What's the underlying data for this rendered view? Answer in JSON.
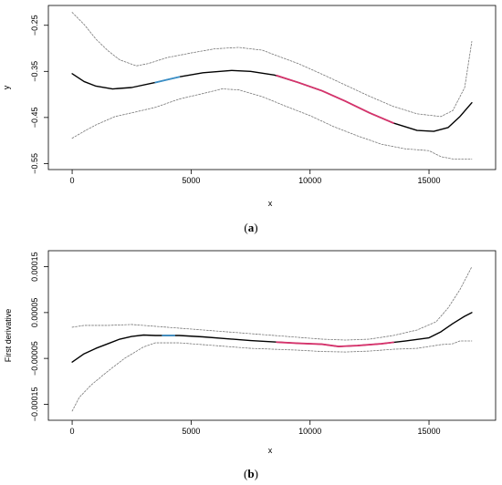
{
  "chart_data": [
    {
      "type": "line",
      "caption_letter": "a",
      "xlabel": "x",
      "ylabel": "y",
      "xlim": [
        -1000,
        17800
      ],
      "ylim": [
        -0.563,
        -0.207
      ],
      "x_ticks": [
        0,
        5000,
        10000,
        15000
      ],
      "x_tick_labels": [
        "0",
        "5000",
        "10000",
        "15000"
      ],
      "y_ticks": [
        -0.25,
        -0.35,
        -0.45,
        -0.55
      ],
      "y_tick_labels": [
        "−0.25",
        "−0.35",
        "−0.45",
        "−0.55"
      ],
      "grid": false,
      "colors": {
        "fit": "#000000",
        "bands": "#777777",
        "increasing": "#3a8fc7",
        "decreasing": "#d6336c"
      },
      "series": [
        {
          "role": "fit",
          "points": [
            [
              0,
              -0.355
            ],
            [
              500,
              -0.372
            ],
            [
              1000,
              -0.382
            ],
            [
              1700,
              -0.388
            ],
            [
              2500,
              -0.385
            ],
            [
              3500,
              -0.374
            ],
            [
              4500,
              -0.362
            ],
            [
              5500,
              -0.353
            ],
            [
              6700,
              -0.348
            ],
            [
              7500,
              -0.35
            ],
            [
              8500,
              -0.358
            ],
            [
              9500,
              -0.374
            ],
            [
              10500,
              -0.392
            ],
            [
              11500,
              -0.415
            ],
            [
              12500,
              -0.44
            ],
            [
              13500,
              -0.462
            ],
            [
              14500,
              -0.478
            ],
            [
              15200,
              -0.48
            ],
            [
              15800,
              -0.472
            ],
            [
              16300,
              -0.448
            ],
            [
              16800,
              -0.418
            ]
          ]
        },
        {
          "role": "upper-band",
          "points": [
            [
              0,
              -0.222
            ],
            [
              500,
              -0.248
            ],
            [
              1000,
              -0.28
            ],
            [
              1500,
              -0.305
            ],
            [
              2000,
              -0.325
            ],
            [
              2700,
              -0.338
            ],
            [
              3200,
              -0.333
            ],
            [
              4000,
              -0.32
            ],
            [
              5000,
              -0.31
            ],
            [
              6000,
              -0.301
            ],
            [
              7000,
              -0.298
            ],
            [
              8000,
              -0.304
            ],
            [
              8500,
              -0.314
            ],
            [
              9500,
              -0.333
            ],
            [
              10500,
              -0.356
            ],
            [
              11500,
              -0.38
            ],
            [
              12500,
              -0.404
            ],
            [
              13500,
              -0.426
            ],
            [
              14500,
              -0.442
            ],
            [
              15500,
              -0.448
            ],
            [
              16000,
              -0.435
            ],
            [
              16500,
              -0.385
            ],
            [
              16800,
              -0.285
            ]
          ]
        },
        {
          "role": "lower-band",
          "points": [
            [
              0,
              -0.495
            ],
            [
              500,
              -0.48
            ],
            [
              1000,
              -0.466
            ],
            [
              1800,
              -0.448
            ],
            [
              2500,
              -0.44
            ],
            [
              3500,
              -0.428
            ],
            [
              4500,
              -0.41
            ],
            [
              5500,
              -0.398
            ],
            [
              6300,
              -0.388
            ],
            [
              7000,
              -0.39
            ],
            [
              8000,
              -0.405
            ],
            [
              9000,
              -0.426
            ],
            [
              10000,
              -0.446
            ],
            [
              11000,
              -0.47
            ],
            [
              12000,
              -0.49
            ],
            [
              13000,
              -0.508
            ],
            [
              14000,
              -0.518
            ],
            [
              15000,
              -0.522
            ],
            [
              15500,
              -0.535
            ],
            [
              16000,
              -0.54
            ],
            [
              16800,
              -0.54
            ]
          ]
        },
        {
          "role": "increasing-segment",
          "points": [
            [
              3500,
              -0.374
            ],
            [
              4000,
              -0.368
            ],
            [
              4500,
              -0.362
            ]
          ]
        },
        {
          "role": "decreasing-segment",
          "points": [
            [
              8600,
              -0.359
            ],
            [
              9500,
              -0.374
            ],
            [
              10500,
              -0.392
            ],
            [
              11500,
              -0.415
            ],
            [
              12500,
              -0.44
            ],
            [
              13500,
              -0.462
            ]
          ]
        }
      ]
    },
    {
      "type": "line",
      "caption_letter": "b",
      "xlabel": "x",
      "ylabel": "First derivative",
      "xlim": [
        -1000,
        17800
      ],
      "ylim": [
        -0.000185,
        0.000185
      ],
      "x_ticks": [
        0,
        5000,
        10000,
        15000
      ],
      "x_tick_labels": [
        "0",
        "5000",
        "10000",
        "15000"
      ],
      "y_ticks": [
        0.00015,
        5e-05,
        -5e-05,
        -0.00015
      ],
      "y_tick_labels": [
        "0.00015",
        "0.00005",
        "−0.00005",
        "−0.00015"
      ],
      "grid": false,
      "colors": {
        "fit": "#000000",
        "bands": "#777777",
        "increasing": "#3a8fc7",
        "decreasing": "#d6336c"
      },
      "series": [
        {
          "role": "fit",
          "points": [
            [
              0,
              -5.8e-05
            ],
            [
              500,
              -4e-05
            ],
            [
              1000,
              -2.8e-05
            ],
            [
              1500,
              -1.8e-05
            ],
            [
              2000,
              -8e-06
            ],
            [
              2500,
              -2e-06
            ],
            [
              3000,
              1e-06
            ],
            [
              3500,
              0.0
            ],
            [
              4500,
              0.0
            ],
            [
              5500,
              -3e-06
            ],
            [
              6500,
              -7e-06
            ],
            [
              7500,
              -1.1e-05
            ],
            [
              8500,
              -1.4e-05
            ],
            [
              9500,
              -1.7e-05
            ],
            [
              10500,
              -1.9e-05
            ],
            [
              11200,
              -2.4e-05
            ],
            [
              12000,
              -2.2e-05
            ],
            [
              13000,
              -1.8e-05
            ],
            [
              14000,
              -1.2e-05
            ],
            [
              15000,
              -5e-06
            ],
            [
              15500,
              8e-06
            ],
            [
              16000,
              2.6e-05
            ],
            [
              16500,
              4.2e-05
            ],
            [
              16800,
              5e-05
            ]
          ]
        },
        {
          "role": "upper-band",
          "points": [
            [
              0,
              1.8e-05
            ],
            [
              500,
              2.2e-05
            ],
            [
              1500,
              2.2e-05
            ],
            [
              2500,
              2.4e-05
            ],
            [
              3500,
              2e-05
            ],
            [
              4500,
              1.6e-05
            ],
            [
              5500,
              1.2e-05
            ],
            [
              6500,
              8e-06
            ],
            [
              7500,
              4e-06
            ],
            [
              8500,
              0.0
            ],
            [
              9500,
              -4e-06
            ],
            [
              10500,
              -8e-06
            ],
            [
              11500,
              -1e-05
            ],
            [
              12500,
              -8e-06
            ],
            [
              13500,
              0.0
            ],
            [
              14500,
              1.2e-05
            ],
            [
              15300,
              3e-05
            ],
            [
              15800,
              6e-05
            ],
            [
              16300,
              0.0001
            ],
            [
              16800,
              0.00015
            ]
          ]
        },
        {
          "role": "lower-band",
          "points": [
            [
              0,
              -0.000165
            ],
            [
              300,
              -0.000135
            ],
            [
              800,
              -0.000108
            ],
            [
              1500,
              -7.8e-05
            ],
            [
              2200,
              -5e-05
            ],
            [
              3000,
              -2.5e-05
            ],
            [
              3500,
              -1.6e-05
            ],
            [
              4500,
              -1.6e-05
            ],
            [
              5500,
              -2e-05
            ],
            [
              6500,
              -2.4e-05
            ],
            [
              7500,
              -2.8e-05
            ],
            [
              8500,
              -3e-05
            ],
            [
              9500,
              -3.2e-05
            ],
            [
              10500,
              -3.5e-05
            ],
            [
              11500,
              -3.6e-05
            ],
            [
              12500,
              -3.4e-05
            ],
            [
              13500,
              -3e-05
            ],
            [
              14500,
              -2.8e-05
            ],
            [
              15500,
              -2e-05
            ],
            [
              16000,
              -1.8e-05
            ],
            [
              16300,
              -1.2e-05
            ],
            [
              16800,
              -1.2e-05
            ]
          ]
        },
        {
          "role": "increasing-segment",
          "points": [
            [
              3800,
              0.0
            ],
            [
              4300,
              0.0
            ]
          ]
        },
        {
          "role": "decreasing-segment",
          "points": [
            [
              8600,
              -1.45e-05
            ],
            [
              9500,
              -1.7e-05
            ],
            [
              10500,
              -1.9e-05
            ],
            [
              11200,
              -2.4e-05
            ],
            [
              12000,
              -2.2e-05
            ],
            [
              13000,
              -1.8e-05
            ],
            [
              13500,
              -1.5e-05
            ]
          ]
        }
      ]
    }
  ]
}
